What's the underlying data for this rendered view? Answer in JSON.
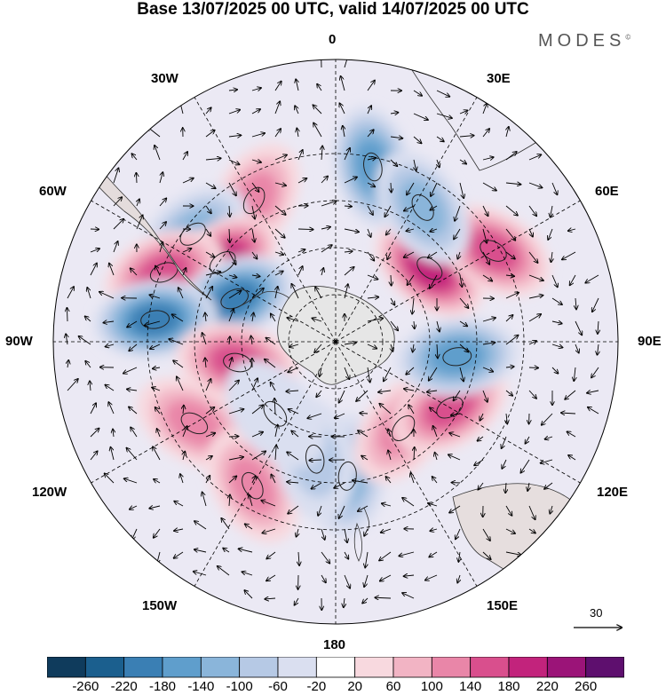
{
  "title": "Base 13/07/2025 00 UTC, valid 14/07/2025 00 UTC",
  "brand": "MODES",
  "brand_mark": "©",
  "projection": "south-polar-stereographic",
  "longitude_labels": {
    "top": "0",
    "lon30e": "30E",
    "lon60e": "60E",
    "lon90e": "90E",
    "lon120e": "120E",
    "lon150e": "150E",
    "bottom": "180",
    "lon150w": "150W",
    "lon120w": "120W",
    "lon90w": "90W",
    "lon60w": "60W",
    "lon30w": "30W"
  },
  "vector_scale": {
    "value": "30"
  },
  "colorbar": {
    "ticks": [
      "-260",
      "-220",
      "-180",
      "-140",
      "-100",
      "-60",
      "-20",
      "20",
      "60",
      "100",
      "140",
      "180",
      "220",
      "260"
    ],
    "colors": [
      "#0f3b5c",
      "#1b5f8e",
      "#3a7fb4",
      "#5f9ecc",
      "#8ab5da",
      "#b6c9e5",
      "#dadff0",
      "#ffffff",
      "#f8d9df",
      "#f2b4c4",
      "#e986a8",
      "#d94f8d",
      "#c2237c",
      "#9b1478",
      "#5e0f6e"
    ]
  },
  "anomaly_centers": [
    {
      "lon": 5,
      "lat": -47,
      "value": -150
    },
    {
      "lon": 38,
      "lat": -55,
      "value": 150
    },
    {
      "lon": 60,
      "lat": -48,
      "value": 160
    },
    {
      "lon": 83,
      "lat": -51,
      "value": -170
    },
    {
      "lon": 128,
      "lat": -52,
      "value": 210
    },
    {
      "lon": 120,
      "lat": -32,
      "value": 190
    },
    {
      "lon": 168,
      "lat": -33,
      "value": -180
    },
    {
      "lon": 147,
      "lat": -39,
      "value": -130
    },
    {
      "lon": 210,
      "lat": -38,
      "value": 140
    },
    {
      "lon": 233,
      "lat": -33,
      "value": -150
    },
    {
      "lon": 235,
      "lat": -46,
      "value": 200
    },
    {
      "lon": 248,
      "lat": -31,
      "value": 170
    },
    {
      "lon": 247,
      "lat": -55,
      "value": -230
    },
    {
      "lon": 263,
      "lat": -32,
      "value": -200
    },
    {
      "lon": 282,
      "lat": -58,
      "value": 180
    },
    {
      "lon": 300,
      "lat": -38,
      "value": 120
    },
    {
      "lon": 330,
      "lat": -37,
      "value": 130
    },
    {
      "lon": 350,
      "lat": -52,
      "value": -110
    },
    {
      "lon": 320,
      "lat": -60,
      "value": -60
    }
  ]
}
